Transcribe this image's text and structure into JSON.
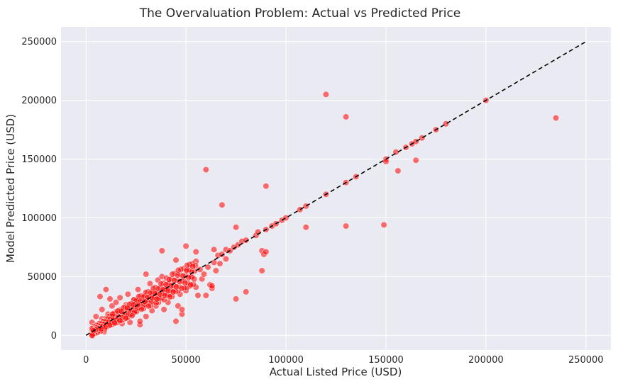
{
  "chart_data": {
    "type": "scatter",
    "title": "The Overvaluation Problem: Actual vs Predicted Price",
    "xlabel": "Actual Listed Price (USD)",
    "ylabel": "Model Predicted Price (USD)",
    "xlim": [
      -12500,
      262500
    ],
    "ylim": [
      -12500,
      262500
    ],
    "xticks": [
      0,
      50000,
      100000,
      150000,
      200000,
      250000
    ],
    "yticks": [
      0,
      50000,
      100000,
      150000,
      200000,
      250000
    ],
    "xtick_labels": [
      "0",
      "50000",
      "100000",
      "150000",
      "200000",
      "250000"
    ],
    "ytick_labels": [
      "0",
      "50000",
      "100000",
      "150000",
      "200000",
      "250000"
    ],
    "grid": true,
    "background": "#eaeaf2",
    "point_color": "#ff0000",
    "reference_line": {
      "x": [
        0,
        250000
      ],
      "y": [
        0,
        250000
      ],
      "style": "dashed",
      "color": "#000000"
    },
    "points": [
      [
        3000,
        11000
      ],
      [
        4000,
        6000
      ],
      [
        5000,
        3000
      ],
      [
        5000,
        16000
      ],
      [
        6000,
        9000
      ],
      [
        7000,
        5000
      ],
      [
        7000,
        33000
      ],
      [
        8000,
        14000
      ],
      [
        8000,
        22000
      ],
      [
        9000,
        3000
      ],
      [
        10000,
        39000
      ],
      [
        10000,
        7000
      ],
      [
        11000,
        18000
      ],
      [
        12000,
        9000
      ],
      [
        12000,
        31000
      ],
      [
        13000,
        25000
      ],
      [
        14000,
        12000
      ],
      [
        15000,
        20000
      ],
      [
        15000,
        28000
      ],
      [
        16000,
        14000
      ],
      [
        17000,
        32000
      ],
      [
        18000,
        10000
      ],
      [
        19000,
        22000
      ],
      [
        20000,
        15000
      ],
      [
        20000,
        26000
      ],
      [
        21000,
        35000
      ],
      [
        22000,
        11000
      ],
      [
        23000,
        18000
      ],
      [
        24000,
        30000
      ],
      [
        25000,
        21000
      ],
      [
        26000,
        39000
      ],
      [
        27000,
        9000
      ],
      [
        27000,
        12000
      ],
      [
        28000,
        25000
      ],
      [
        29000,
        33000
      ],
      [
        30000,
        52000
      ],
      [
        30000,
        16000
      ],
      [
        31000,
        28000
      ],
      [
        32000,
        44000
      ],
      [
        33000,
        21000
      ],
      [
        34000,
        36000
      ],
      [
        35000,
        25000
      ],
      [
        36000,
        47000
      ],
      [
        37000,
        31000
      ],
      [
        38000,
        72000
      ],
      [
        38000,
        50000
      ],
      [
        39000,
        22000
      ],
      [
        40000,
        38000
      ],
      [
        41000,
        28000
      ],
      [
        42000,
        45000
      ],
      [
        43000,
        33000
      ],
      [
        44000,
        40000
      ],
      [
        45000,
        64000
      ],
      [
        45000,
        12000
      ],
      [
        46000,
        25000
      ],
      [
        47000,
        35000
      ],
      [
        48000,
        18000
      ],
      [
        48000,
        22000
      ],
      [
        49000,
        48000
      ],
      [
        50000,
        76000
      ],
      [
        50000,
        38000
      ],
      [
        51000,
        55000
      ],
      [
        52000,
        42000
      ],
      [
        53000,
        50000
      ],
      [
        55000,
        41000
      ],
      [
        55000,
        63000
      ],
      [
        55000,
        71000
      ],
      [
        56000,
        34000
      ],
      [
        57000,
        56000
      ],
      [
        58000,
        48000
      ],
      [
        59000,
        52000
      ],
      [
        60000,
        141000
      ],
      [
        60000,
        34000
      ],
      [
        61000,
        58000
      ],
      [
        62000,
        43000
      ],
      [
        63000,
        40000
      ],
      [
        63000,
        42000
      ],
      [
        64000,
        73000
      ],
      [
        64000,
        62000
      ],
      [
        65000,
        55000
      ],
      [
        66000,
        68000
      ],
      [
        67000,
        61000
      ],
      [
        68000,
        111000
      ],
      [
        68000,
        69000
      ],
      [
        70000,
        73000
      ],
      [
        70000,
        65000
      ],
      [
        72000,
        72000
      ],
      [
        74000,
        75000
      ],
      [
        75000,
        31000
      ],
      [
        75000,
        92000
      ],
      [
        76000,
        77000
      ],
      [
        78000,
        80000
      ],
      [
        80000,
        37000
      ],
      [
        80000,
        81000
      ],
      [
        85000,
        85000
      ],
      [
        86000,
        88000
      ],
      [
        88000,
        55000
      ],
      [
        88000,
        72000
      ],
      [
        89000,
        69000
      ],
      [
        90000,
        127000
      ],
      [
        90000,
        71000
      ],
      [
        90000,
        90000
      ],
      [
        93000,
        93000
      ],
      [
        95000,
        95000
      ],
      [
        98000,
        98000
      ],
      [
        100000,
        100000
      ],
      [
        107000,
        107000
      ],
      [
        110000,
        92000
      ],
      [
        110000,
        110000
      ],
      [
        120000,
        205000
      ],
      [
        120000,
        120000
      ],
      [
        130000,
        186000
      ],
      [
        130000,
        93000
      ],
      [
        130000,
        130000
      ],
      [
        135000,
        135000
      ],
      [
        149000,
        94000
      ],
      [
        150000,
        150000
      ],
      [
        150000,
        148000
      ],
      [
        155000,
        156000
      ],
      [
        156000,
        140000
      ],
      [
        160000,
        160000
      ],
      [
        163000,
        163000
      ],
      [
        165000,
        165000
      ],
      [
        165000,
        149000
      ],
      [
        168000,
        168000
      ],
      [
        175000,
        175000
      ],
      [
        180000,
        180000
      ],
      [
        200000,
        200000
      ],
      [
        235000,
        185000
      ]
    ]
  }
}
